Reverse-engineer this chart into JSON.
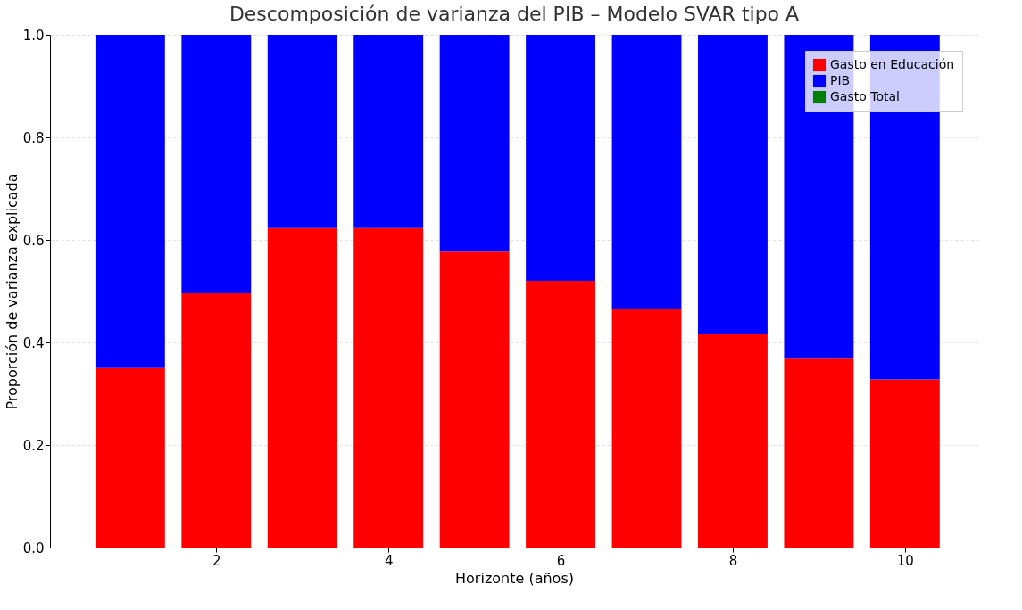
{
  "chart_data": {
    "type": "bar",
    "stacked": true,
    "title": "Descomposición de varianza del PIB – Modelo SVAR tipo A",
    "xlabel": "Horizonte (años)",
    "ylabel": "Proporción de varianza explicada",
    "x": [
      1,
      2,
      3,
      4,
      5,
      6,
      7,
      8,
      9,
      10
    ],
    "series": [
      {
        "name": "Gasto en Educación",
        "color": "#ff0000",
        "values": [
          0.35,
          0.496,
          0.623,
          0.623,
          0.577,
          0.52,
          0.465,
          0.416,
          0.37,
          0.328
        ]
      },
      {
        "name": "PIB",
        "color": "#0000ff",
        "values": [
          0.65,
          0.504,
          0.377,
          0.377,
          0.423,
          0.48,
          0.535,
          0.584,
          0.63,
          0.672
        ]
      },
      {
        "name": "Gasto Total",
        "color": "#008000",
        "values": [
          0,
          0,
          0,
          0,
          0,
          0,
          0,
          0,
          0,
          0
        ]
      }
    ],
    "xlim": [
      0.12,
      10.8
    ],
    "xticks": [
      2,
      4,
      6,
      8,
      10
    ],
    "ylim": [
      0,
      1.0
    ],
    "yticks": [
      {
        "value": 0,
        "label": "0.0"
      },
      {
        "value": 0.2,
        "label": "0.2"
      },
      {
        "value": 0.4,
        "label": "0.4"
      },
      {
        "value": 0.6,
        "label": "0.6"
      },
      {
        "value": 0.8,
        "label": "0.8"
      },
      {
        "value": 1.0,
        "label": "1.0"
      }
    ],
    "grid": true,
    "legend": "top right"
  }
}
